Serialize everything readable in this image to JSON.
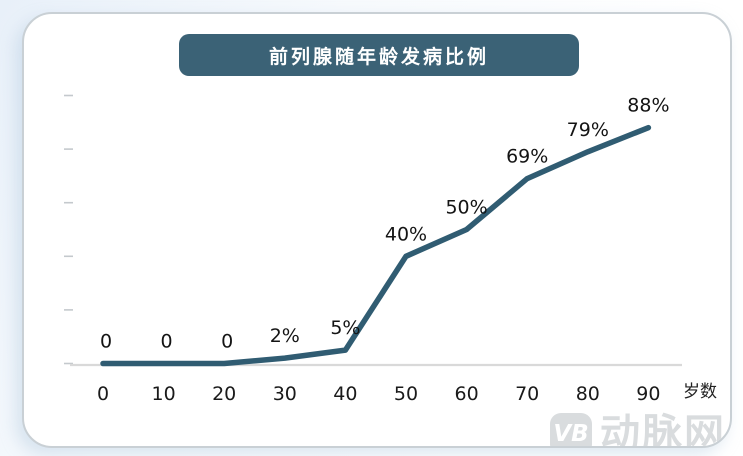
{
  "chart": {
    "title": "前列腺随年龄发病比例"
  },
  "watermark": {
    "logo": "VB",
    "text": "动脉网"
  },
  "colors": {
    "line": "#305c72",
    "title_bg": "#3b6276",
    "axis": "#d9d9d9",
    "tick": "#c4c9cd",
    "label_text": "#141414",
    "watermark": "#d9dcde"
  },
  "chart_data": {
    "type": "line",
    "title": "前列腺随年龄发病比例",
    "x": [
      0,
      10,
      20,
      30,
      40,
      50,
      60,
      70,
      80,
      90
    ],
    "values": [
      0,
      0,
      0,
      2,
      5,
      40,
      50,
      69,
      79,
      88
    ],
    "point_labels": [
      "0",
      "0",
      "0",
      "2%",
      "5%",
      "40%",
      "50%",
      "69%",
      "79%",
      "88%"
    ],
    "xlabel": "岁数",
    "ylabel": "",
    "ylim": [
      0,
      100
    ],
    "y_ticks": [
      0,
      20,
      40,
      60,
      80,
      100
    ],
    "y_tick_labels_visible": false,
    "grid": false,
    "legend": "none"
  }
}
